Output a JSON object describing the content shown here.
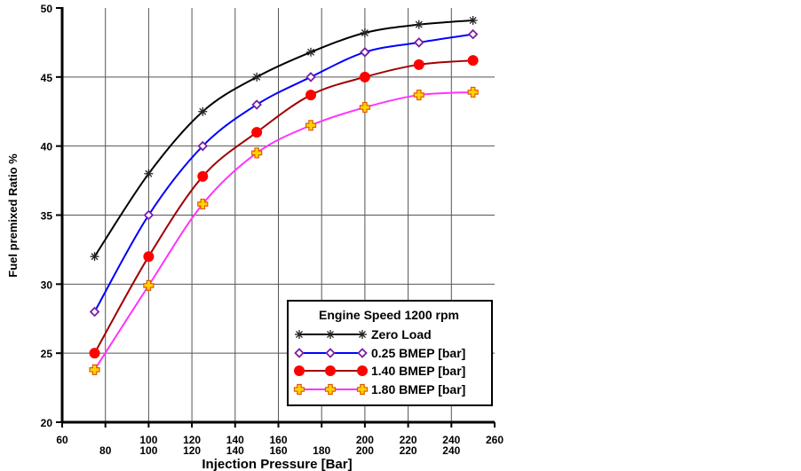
{
  "chart_data": {
    "type": "line",
    "xlabel": "Injection Pressure [Bar]",
    "ylabel": "Fuel premixed Ratio %",
    "xlim": [
      60,
      260
    ],
    "ylim": [
      20,
      50
    ],
    "x_ticks_top": [
      60,
      100,
      120,
      140,
      160,
      200,
      220,
      240,
      260
    ],
    "x_ticks_bottom": [
      80,
      100,
      120,
      140,
      160,
      180,
      200,
      220,
      240
    ],
    "y_ticks": [
      20,
      25,
      30,
      35,
      40,
      45,
      50
    ],
    "grid": true,
    "legend": {
      "title": "Engine Speed 1200 rpm",
      "placement": "bottom-right"
    },
    "x": [
      75,
      100,
      125,
      150,
      175,
      200,
      225,
      250
    ],
    "series": [
      {
        "name": "Zero Load",
        "color": "#000000",
        "marker": "asterisk",
        "values": [
          32,
          38,
          42.5,
          45,
          46.8,
          48.2,
          48.8,
          49.1
        ]
      },
      {
        "name": "0.25 BMEP [bar]",
        "color": "#0000ff",
        "marker": "diamond",
        "marker_color": "#7a1fa2",
        "values": [
          28,
          35,
          40,
          43,
          45,
          46.8,
          47.5,
          48.1
        ]
      },
      {
        "name": "1.40 BMEP [bar]",
        "color": "#a00000",
        "marker": "circle",
        "marker_color": "#ff0000",
        "values": [
          25,
          32,
          37.8,
          41,
          43.7,
          45,
          45.9,
          46.2
        ]
      },
      {
        "name": "1.80 BMEP [bar]",
        "color": "#ff33ff",
        "marker": "cross-square",
        "marker_color": "#ff9900",
        "values": [
          23.8,
          29.9,
          35.8,
          39.5,
          41.5,
          42.8,
          43.7,
          43.9
        ]
      }
    ]
  }
}
